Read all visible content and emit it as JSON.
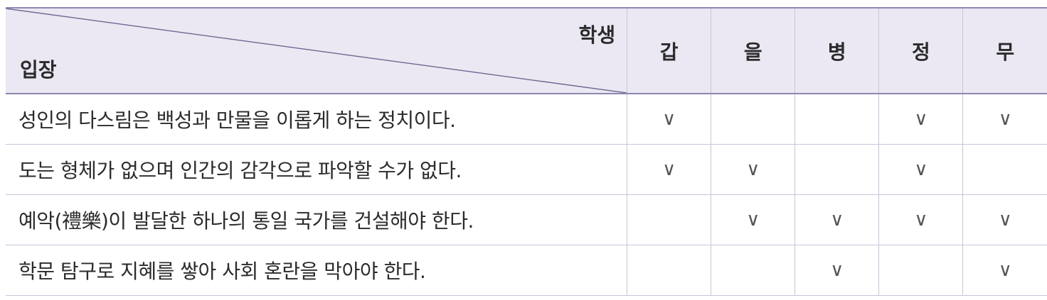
{
  "header": {
    "student_label": "학생",
    "position_label": "입장",
    "students": [
      "갑",
      "을",
      "병",
      "정",
      "무"
    ]
  },
  "rows": [
    {
      "text": "성인의 다스림은 백성과 만물을 이롭게 하는 정치이다.",
      "marks": [
        "∨",
        "",
        "",
        "∨",
        "∨"
      ]
    },
    {
      "text": "도는 형체가 없으며 인간의 감각으로 파악할 수가 없다.",
      "marks": [
        "∨",
        "∨",
        "",
        "∨",
        ""
      ]
    },
    {
      "text": "예악(禮樂)이 발달한 하나의 통일 국가를 건설해야 한다.",
      "marks": [
        "",
        "∨",
        "∨",
        "∨",
        "∨"
      ]
    },
    {
      "text": "학문 탐구로 지혜를 쌓아 사회 혼란을 막아야 한다.",
      "marks": [
        "",
        "",
        "∨",
        "",
        "∨"
      ]
    }
  ],
  "colors": {
    "header_bg": "#ebe8f3",
    "rule": "#8f86b0",
    "grid": "#c9c4da"
  }
}
